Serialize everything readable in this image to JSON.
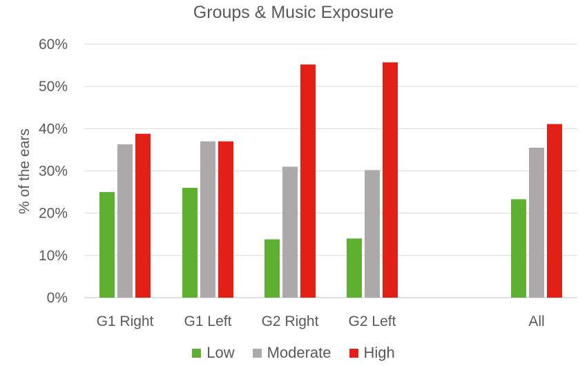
{
  "chart_data": {
    "type": "bar",
    "title": "Groups & Music Exposure",
    "xlabel": "",
    "ylabel": "% of the ears",
    "categories": [
      "G1 Right",
      "G1 Left",
      "G2 Right",
      "G2 Left",
      "All"
    ],
    "series": [
      {
        "name": "Low",
        "color": "#5DB030",
        "values": [
          25,
          26,
          13.8,
          14,
          23.3
        ]
      },
      {
        "name": "Moderate",
        "color": "#ABA9A9",
        "values": [
          36.3,
          37,
          31,
          30.2,
          35.5
        ]
      },
      {
        "name": "High",
        "color": "#E32015",
        "values": [
          38.8,
          37,
          55.2,
          55.7,
          41.1
        ]
      }
    ],
    "ylim": [
      0,
      60
    ],
    "yticks": [
      0,
      10,
      20,
      30,
      40,
      50,
      60
    ],
    "ytick_labels": [
      "0%",
      "10%",
      "20%",
      "30%",
      "40%",
      "50%",
      "60%"
    ],
    "grid": true,
    "legend_position": "bottom"
  }
}
